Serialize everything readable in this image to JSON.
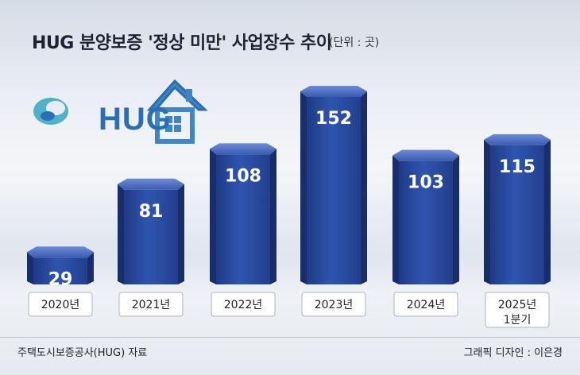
{
  "title": "HUG 분양보증 '정상 미만' 사업장수 추이",
  "unit": "(단위 : 곳)",
  "logo_text": "HUG",
  "source": "주택도시보증공사(HUG) 자료",
  "designer": "그래픽 디자인 : 이은경",
  "colors": {
    "bar_front": "#2b4a9e",
    "bar_side": "#182d6a",
    "bar_top": "#4f6fc2",
    "label_box": "#ffffff"
  },
  "chart_data": {
    "type": "bar",
    "categories": [
      "2020년",
      "2021년",
      "2022년",
      "2023년",
      "2024년",
      "2025년 1분기"
    ],
    "category_lines": [
      [
        "2020년"
      ],
      [
        "2021년"
      ],
      [
        "2022년"
      ],
      [
        "2023년"
      ],
      [
        "2024년"
      ],
      [
        "2025년",
        "1분기"
      ]
    ],
    "values": [
      29,
      81,
      108,
      152,
      103,
      115
    ],
    "data_labels": [
      "29",
      "81",
      "108",
      "152",
      "103",
      "115"
    ],
    "title": "HUG 분양보증 '정상 미만' 사업장수 추이",
    "ylim": [
      0,
      152
    ],
    "grid": false,
    "legend": "none"
  }
}
